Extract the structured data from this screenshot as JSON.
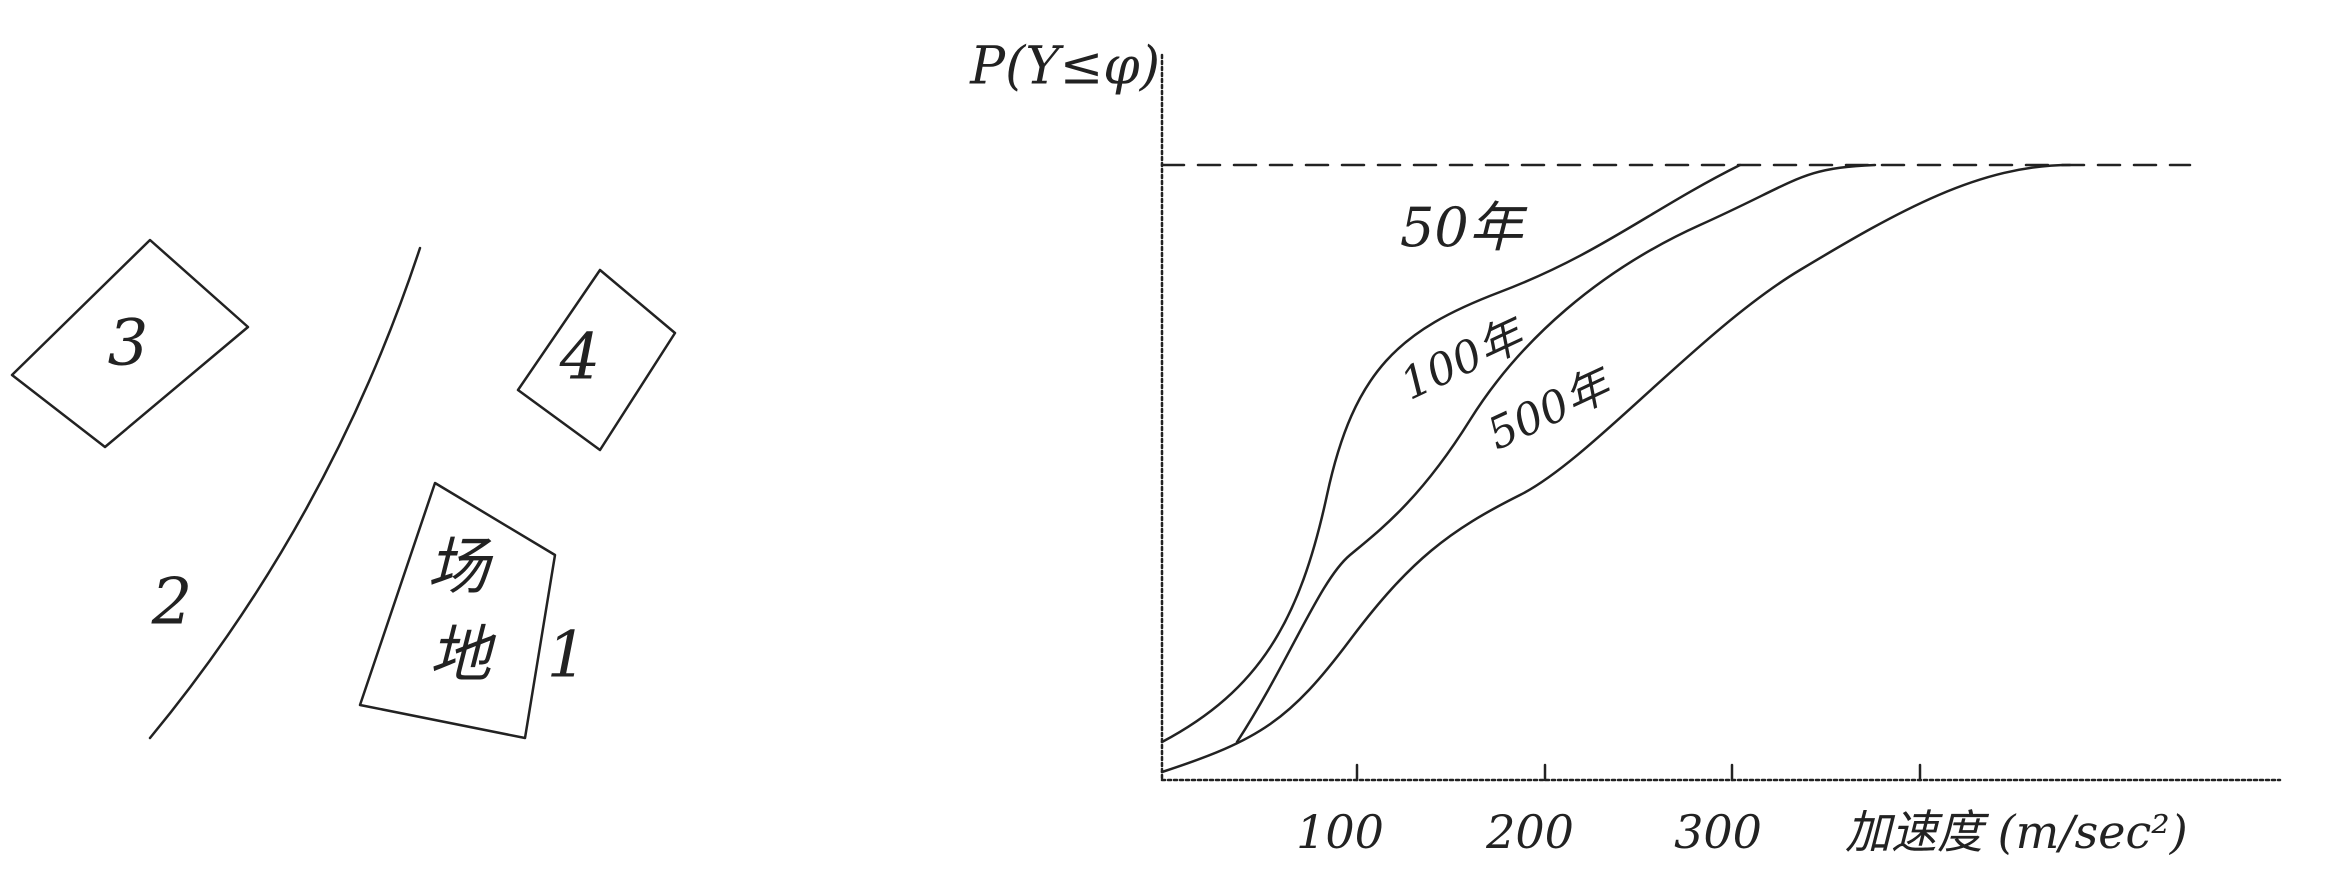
{
  "site_map": {
    "zone_3": "3",
    "zone_4": "4",
    "zone_2": "2",
    "zone_1": "1",
    "site_lines": [
      "场",
      "地"
    ]
  },
  "chart": {
    "y_label": "P(Y≤φ)",
    "x_label": "加速度 (m/sec²)",
    "x_ticks": [
      "100",
      "200",
      "300"
    ],
    "curves": [
      "50年",
      "100年",
      "500年"
    ]
  }
}
